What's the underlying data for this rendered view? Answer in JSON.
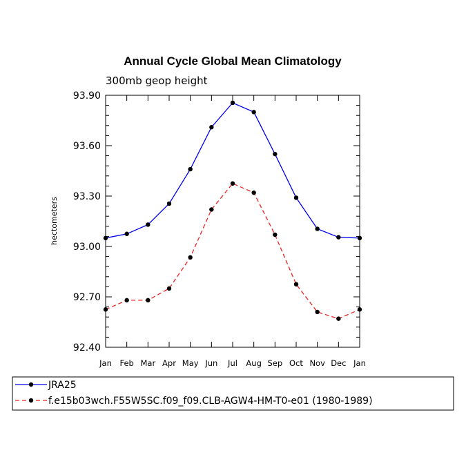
{
  "chart_data": {
    "type": "line",
    "title": "Annual Cycle Global Mean Climatology",
    "subtitle": "300mb geop height",
    "ylabel": "hectometers",
    "xlabel": "",
    "categories": [
      "Jan",
      "Feb",
      "Mar",
      "Apr",
      "May",
      "Jun",
      "Jul",
      "Aug",
      "Sep",
      "Oct",
      "Nov",
      "Dec",
      "Jan"
    ],
    "ylim": [
      92.4,
      93.9
    ],
    "yticks": [
      "92.40",
      "92.70",
      "93.00",
      "93.30",
      "93.60",
      "93.90"
    ],
    "grid": false,
    "legend_placement": "bottom",
    "series": [
      {
        "name": "JRA25",
        "color": "#0000ee",
        "dash": "solid",
        "marker": "circle",
        "values": [
          93.05,
          93.075,
          93.13,
          93.255,
          93.46,
          93.71,
          93.855,
          93.8,
          93.55,
          93.29,
          93.105,
          93.055,
          93.05
        ]
      },
      {
        "name": "f.e15b03wch.F55W5SC.f09_f09.CLB-AGW4-HM-T0-e01 (1980-1989)",
        "color": "#ee2222",
        "dash": "dashed",
        "marker": "circle",
        "values": [
          92.625,
          92.68,
          92.68,
          92.75,
          92.935,
          93.22,
          93.375,
          93.32,
          93.07,
          92.775,
          92.61,
          92.57,
          92.625
        ]
      }
    ]
  }
}
